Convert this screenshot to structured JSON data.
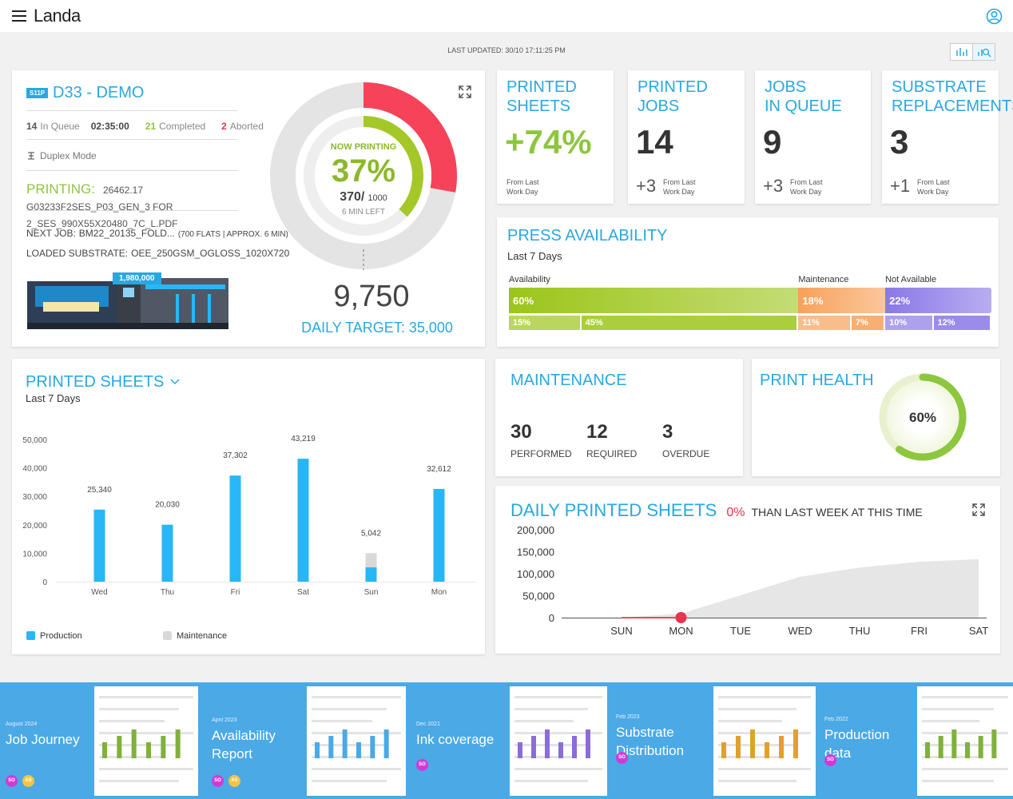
{
  "header": {
    "logo": "Landa"
  },
  "last_updated": "LAST UPDATED: 30/10 17:11:25 PM",
  "press": {
    "badge": "S11P",
    "name": "D33 - DEMO",
    "in_queue_count": 14,
    "in_queue_label": "In Queue",
    "queue_time": "02:35:00",
    "completed_count": 21,
    "completed_label": "Completed",
    "aborted_count": 2,
    "aborted_label": "Aborted",
    "mode": "Duplex Mode",
    "printing_label": "PRINTING:",
    "printing_job": "26462.17 G03233F2SES_P03_GEN_3 FOR 2_SES_990X55X20480_7C_L.PDF",
    "next_job_label": "NEXT JOB:",
    "next_job": "BM22_20135_FOLD...",
    "next_job_detail": "(700 FLATS | APPROX. 6 MIN)",
    "substrate_label": "LOADED SUBSTRATE:",
    "substrate": "OEE_250GSM_OGLOSS_1020X720",
    "counter_badge": "1,980,000"
  },
  "gauge": {
    "label": "NOW PRINTING",
    "percent": {
      "value": 37,
      "label": "37%"
    },
    "done": {
      "value": 370,
      "label": "370/"
    },
    "total": 1000,
    "time_left": "6 MIN LEFT",
    "daily_count": {
      "value": 9750,
      "label": "9,750"
    },
    "daily_target_label": "DAILY TARGET:",
    "daily_target": {
      "value": 35000,
      "label": "35,000"
    }
  },
  "kpis": [
    {
      "title": [
        "PRINTED",
        "SHEETS"
      ],
      "value": "+74%",
      "color": "#8dc63f",
      "note": [
        "From Last",
        "Work Day"
      ]
    },
    {
      "title": [
        "PRINTED",
        "JOBS"
      ],
      "value": 14,
      "color": "#333333",
      "delta": "+3",
      "note": [
        "From Last",
        "Work Day"
      ]
    },
    {
      "title": [
        "JOBS",
        "IN QUEUE"
      ],
      "value": 9,
      "color": "#333333",
      "delta": "+3",
      "note": [
        "From Last",
        "Work Day"
      ]
    },
    {
      "title": [
        "SUBSTRATE",
        "REPLACEMENTS"
      ],
      "value": 3,
      "color": "#333333",
      "delta": "+1",
      "note": [
        "From Last",
        "Work Day"
      ]
    }
  ],
  "availability": {
    "title": "PRESS AVAILABILITY",
    "subtitle": "Last 7 Days",
    "segments": [
      {
        "name": "Availability",
        "value": 60,
        "label": "60%",
        "color": "#9cc51a",
        "parts": [
          {
            "value": 15,
            "label": "15%"
          },
          {
            "value": 45,
            "label": "45%"
          }
        ]
      },
      {
        "name": "Maintenance",
        "value": 18,
        "label": "18%",
        "color": "#f7a15a",
        "parts": [
          {
            "value": 11,
            "label": "11%"
          },
          {
            "value": 7,
            "label": "7%"
          }
        ]
      },
      {
        "name": "Not Available",
        "value": 22,
        "label": "22%",
        "color": "#8a78e6",
        "parts": [
          {
            "value": 10,
            "label": "10%"
          },
          {
            "value": 12,
            "label": "12%"
          }
        ]
      }
    ]
  },
  "maintenance": {
    "title": "MAINTENANCE",
    "items": [
      {
        "value": 30,
        "label": "PERFORMED"
      },
      {
        "value": 12,
        "label": "REQUIRED"
      },
      {
        "value": 3,
        "label": "OVERDUE"
      }
    ]
  },
  "print_health": {
    "title": "PRINT HEALTH",
    "value": 60,
    "value_label": "60%"
  },
  "chart_data": [
    {
      "type": "bar",
      "title": "PRINTED SHEETS",
      "subtitle": "Last 7 Days",
      "stacked": true,
      "grid": false,
      "categories": [
        "Wed",
        "Thu",
        "Fri",
        "Sat",
        "Sun",
        "Mon"
      ],
      "series": [
        {
          "name": "Production",
          "color": "#29b6f6",
          "values": [
            25340,
            20030,
            37302,
            43219,
            5042,
            32612
          ],
          "value_labels": [
            "25,340",
            "20,030",
            "37,302",
            "43,219",
            "5,042",
            "32,612"
          ]
        },
        {
          "name": "Maintenance",
          "color": "#d9d9d9",
          "values": [
            0,
            0,
            0,
            0,
            5000,
            0
          ]
        }
      ],
      "ylim": [
        0,
        50000
      ],
      "yticks": [
        0,
        {
          "value": 10000,
          "label": "10,000"
        },
        {
          "value": 20000,
          "label": "20,000"
        },
        {
          "value": 30000,
          "label": "30,000"
        },
        {
          "value": 40000,
          "label": "40,000"
        },
        {
          "value": 50000,
          "label": "50,000"
        }
      ]
    },
    {
      "type": "line",
      "title": "DAILY PRINTED SHEETS",
      "change": "0%",
      "change_text": "THAN LAST WEEK AT THIS TIME",
      "grid": false,
      "categories": [
        "SUN",
        "MON",
        "TUE",
        "WED",
        "THU",
        "FRI",
        "SAT"
      ],
      "series": [
        {
          "color": "#e6e6e6",
          "fill": true,
          "values": [
            0,
            9000,
            51000,
            93000,
            114000,
            127000,
            133000
          ]
        },
        {
          "color": "#e8344e",
          "marker": true,
          "values": [
            0,
            0,
            null,
            null,
            null,
            null,
            null
          ]
        }
      ],
      "ylim": [
        0,
        200000
      ],
      "yticks": [
        0,
        {
          "value": 50000,
          "label": "50,000"
        },
        {
          "value": 100000,
          "label": "100,000"
        },
        {
          "value": 150000,
          "label": "150,000"
        },
        {
          "value": 200000,
          "label": "200,000"
        }
      ]
    }
  ],
  "reports": [
    {
      "date": "August 2024",
      "title": "Job Journey",
      "avatars": [
        "SO",
        "AS"
      ]
    },
    {
      "date": "April 2023",
      "title": "Availability Report",
      "avatars": [
        "SO",
        "AS"
      ]
    },
    {
      "date": "Dec 2021",
      "title": "Ink coverage",
      "avatars": [
        "SO"
      ]
    },
    {
      "date": "Feb 2023",
      "title": "Substrate Distribution",
      "avatars": [
        "SO"
      ]
    },
    {
      "date": "Feb 2022",
      "title": "Production data",
      "avatars": [
        "SO"
      ]
    }
  ]
}
